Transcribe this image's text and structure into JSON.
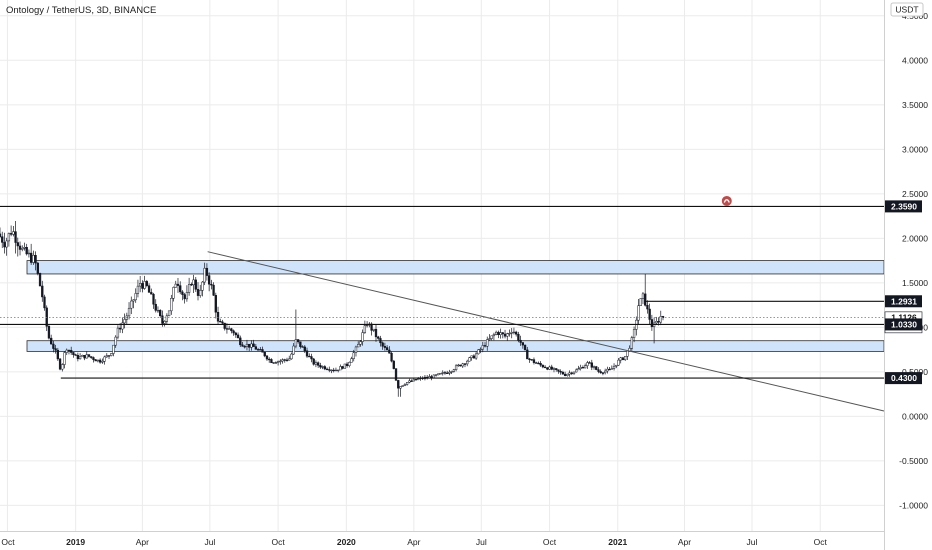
{
  "chart_data": {
    "type": "candlestick",
    "title": "Ontology / TetherUS, 3D, BINANCE",
    "currency": "USDT",
    "y_ticks": [
      4.5,
      4.0,
      3.5,
      3.0,
      2.5,
      2.0,
      1.5,
      1.0,
      0.5,
      0.0,
      -0.5,
      -1.0
    ],
    "y_tick_labels": [
      "4.5000",
      "4.0000",
      "3.5000",
      "3.0000",
      "2.5000",
      "2.0000",
      "1.5000",
      "1.0000",
      "0.5000",
      "0.0000",
      "-0.5000",
      "-1.0000"
    ],
    "ylim": [
      -1.3,
      4.6
    ],
    "x_labels": [
      {
        "label": "Oct",
        "date": "2018-10-01",
        "bold": false
      },
      {
        "label": "2019",
        "date": "2019-01-01",
        "bold": true
      },
      {
        "label": "Apr",
        "date": "2019-04-01",
        "bold": false
      },
      {
        "label": "Jul",
        "date": "2019-07-01",
        "bold": false
      },
      {
        "label": "Oct",
        "date": "2019-10-01",
        "bold": false
      },
      {
        "label": "2020",
        "date": "2020-01-01",
        "bold": true
      },
      {
        "label": "Apr",
        "date": "2020-04-01",
        "bold": false
      },
      {
        "label": "Jul",
        "date": "2020-07-01",
        "bold": false
      },
      {
        "label": "Oct",
        "date": "2020-10-01",
        "bold": false
      },
      {
        "label": "2021",
        "date": "2021-01-01",
        "bold": true
      },
      {
        "label": "Apr",
        "date": "2021-04-01",
        "bold": false
      },
      {
        "label": "Jul",
        "date": "2021-07-01",
        "bold": false
      },
      {
        "label": "Oct",
        "date": "2021-10-01",
        "bold": false
      }
    ],
    "x_range": [
      "2018-09-21",
      "2021-12-26"
    ],
    "price_path": [
      [
        "2018-09-21",
        2.05
      ],
      [
        "2018-10-01",
        1.95
      ],
      [
        "2018-10-10",
        2.1
      ],
      [
        "2018-10-25",
        1.85
      ],
      [
        "2018-11-10",
        1.75
      ],
      [
        "2018-11-20",
        1.35
      ],
      [
        "2018-11-28",
        0.9
      ],
      [
        "2018-12-08",
        0.72
      ],
      [
        "2018-12-15",
        0.52
      ],
      [
        "2018-12-22",
        0.78
      ],
      [
        "2019-01-05",
        0.66
      ],
      [
        "2019-01-20",
        0.68
      ],
      [
        "2019-02-05",
        0.62
      ],
      [
        "2019-02-20",
        0.7
      ],
      [
        "2019-03-01",
        0.95
      ],
      [
        "2019-03-15",
        1.15
      ],
      [
        "2019-04-01",
        1.5
      ],
      [
        "2019-04-10",
        1.45
      ],
      [
        "2019-04-20",
        1.25
      ],
      [
        "2019-05-01",
        1.05
      ],
      [
        "2019-05-10",
        1.2
      ],
      [
        "2019-05-20",
        1.55
      ],
      [
        "2019-06-01",
        1.3
      ],
      [
        "2019-06-10",
        1.55
      ],
      [
        "2019-06-20",
        1.35
      ],
      [
        "2019-06-28",
        1.65
      ],
      [
        "2019-07-08",
        1.4
      ],
      [
        "2019-07-15",
        1.05
      ],
      [
        "2019-07-25",
        1.0
      ],
      [
        "2019-08-05",
        0.95
      ],
      [
        "2019-08-15",
        0.82
      ],
      [
        "2019-09-01",
        0.78
      ],
      [
        "2019-09-15",
        0.7
      ],
      [
        "2019-09-24",
        0.62
      ],
      [
        "2019-10-05",
        0.62
      ],
      [
        "2019-10-20",
        0.65
      ],
      [
        "2019-10-28",
        0.85
      ],
      [
        "2019-11-08",
        0.75
      ],
      [
        "2019-11-20",
        0.6
      ],
      [
        "2019-12-05",
        0.55
      ],
      [
        "2019-12-20",
        0.52
      ],
      [
        "2020-01-05",
        0.58
      ],
      [
        "2020-01-20",
        0.8
      ],
      [
        "2020-02-01",
        1.05
      ],
      [
        "2020-02-10",
        0.95
      ],
      [
        "2020-02-20",
        0.8
      ],
      [
        "2020-03-01",
        0.72
      ],
      [
        "2020-03-08",
        0.55
      ],
      [
        "2020-03-13",
        0.32
      ],
      [
        "2020-03-25",
        0.38
      ],
      [
        "2020-04-10",
        0.42
      ],
      [
        "2020-05-01",
        0.45
      ],
      [
        "2020-05-20",
        0.5
      ],
      [
        "2020-06-10",
        0.6
      ],
      [
        "2020-06-25",
        0.68
      ],
      [
        "2020-07-10",
        0.82
      ],
      [
        "2020-07-25",
        0.95
      ],
      [
        "2020-08-05",
        0.9
      ],
      [
        "2020-08-15",
        0.98
      ],
      [
        "2020-08-25",
        0.85
      ],
      [
        "2020-09-05",
        0.65
      ],
      [
        "2020-09-20",
        0.58
      ],
      [
        "2020-10-10",
        0.52
      ],
      [
        "2020-10-25",
        0.47
      ],
      [
        "2020-11-10",
        0.52
      ],
      [
        "2020-11-25",
        0.6
      ],
      [
        "2020-12-10",
        0.5
      ],
      [
        "2020-12-25",
        0.52
      ],
      [
        "2021-01-05",
        0.62
      ],
      [
        "2021-01-15",
        0.68
      ],
      [
        "2021-01-25",
        0.9
      ],
      [
        "2021-02-01",
        1.25
      ],
      [
        "2021-02-08",
        1.35
      ],
      [
        "2021-02-14",
        1.15
      ],
      [
        "2021-02-20",
        1.0
      ],
      [
        "2021-02-25",
        1.05
      ],
      [
        "2021-03-03",
        1.12
      ]
    ],
    "horizontal_levels": [
      {
        "value": 2.359,
        "label": "2.3590",
        "start": "2018-09-21",
        "dark_tag": true
      },
      {
        "value": 1.2931,
        "label": "1.2931",
        "start": "2021-02-06",
        "dark_tag": true
      },
      {
        "value": 1.033,
        "label": "1.0330",
        "start": "2018-09-21",
        "dark_tag": true
      },
      {
        "value": 0.43,
        "label": "0.4300",
        "start": "2018-12-12",
        "dark_tag": true
      }
    ],
    "zones": [
      {
        "from": 1.6,
        "to": 1.75
      },
      {
        "from": 0.73,
        "to": 0.85
      }
    ],
    "trendline": {
      "from": [
        "2019-06-28",
        1.85
      ],
      "to": [
        "2021-12-26",
        0.06
      ]
    },
    "last_price": {
      "value": 1.1126,
      "label": "1.1126",
      "countdown": "1d 23h"
    },
    "marker": {
      "date": "2021-05-28",
      "value": 2.42
    },
    "colors": {
      "grid": "#ebebeb",
      "candle": "#131722",
      "zone_fill": "#cfe4fb",
      "zone_edge": "#2b2b2b",
      "trendline": "#555555",
      "level": "#111111",
      "tag_bg": "#131722",
      "marker": "#c04a4a"
    }
  }
}
